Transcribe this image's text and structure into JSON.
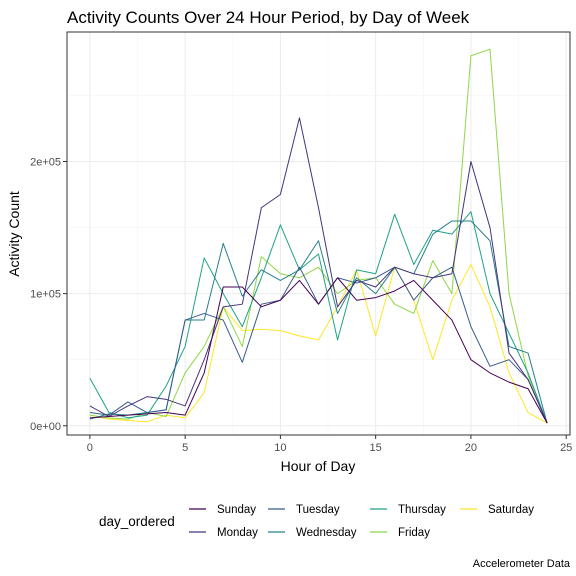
{
  "chart_data": {
    "type": "line",
    "title": "Activity Counts Over 24 Hour Period, by Day of Week",
    "xlabel": "Hour of Day",
    "ylabel": "Activity Count",
    "caption": "Accelerometer Data",
    "xlim": [
      -1.2,
      25.2
    ],
    "ylim": [
      -7000,
      298000
    ],
    "x_ticks": [
      0,
      5,
      10,
      15,
      20,
      25
    ],
    "x_tick_labels": [
      "0",
      "5",
      "10",
      "15",
      "20",
      "25"
    ],
    "y_ticks": [
      0,
      100000,
      200000
    ],
    "y_tick_labels": [
      "0e+00",
      "1e+05",
      "2e+05"
    ],
    "grid": true,
    "legend": {
      "title": "day_ordered",
      "position": "bottom"
    },
    "x": [
      0,
      1,
      2,
      3,
      4,
      5,
      6,
      7,
      8,
      9,
      10,
      11,
      12,
      13,
      14,
      15,
      16,
      17,
      18,
      19,
      20,
      21,
      22,
      23,
      24
    ],
    "series": [
      {
        "name": "Sunday",
        "color": "#440154",
        "values": [
          6000,
          7000,
          8000,
          9000,
          10000,
          8000,
          40000,
          105000,
          105000,
          90000,
          95000,
          110000,
          92000,
          112000,
          95000,
          97000,
          102000,
          110000,
          95000,
          80000,
          50000,
          40000,
          33000,
          28000,
          2000
        ]
      },
      {
        "name": "Monday",
        "color": "#46337E",
        "values": [
          15000,
          7000,
          15000,
          22000,
          20000,
          15000,
          50000,
          90000,
          92000,
          165000,
          175000,
          233000,
          165000,
          90000,
          110000,
          105000,
          120000,
          115000,
          112000,
          115000,
          200000,
          150000,
          55000,
          35000,
          2000
        ]
      },
      {
        "name": "Tuesday",
        "color": "#365C8D",
        "values": [
          10000,
          8000,
          18000,
          10000,
          12000,
          80000,
          85000,
          80000,
          48000,
          92000,
          95000,
          120000,
          92000,
          112000,
          108000,
          112000,
          120000,
          95000,
          112000,
          120000,
          75000,
          45000,
          50000,
          35000,
          2000
        ]
      },
      {
        "name": "Wednesday",
        "color": "#277F8E",
        "values": [
          5000,
          9000,
          8000,
          10000,
          12000,
          80000,
          80000,
          138000,
          98000,
          118000,
          110000,
          118000,
          140000,
          85000,
          112000,
          100000,
          120000,
          115000,
          145000,
          155000,
          155000,
          140000,
          60000,
          55000,
          2000
        ]
      },
      {
        "name": "Thursday",
        "color": "#1FA187",
        "values": [
          36000,
          10000,
          6000,
          8000,
          30000,
          60000,
          127000,
          100000,
          75000,
          112000,
          152000,
          118000,
          130000,
          65000,
          118000,
          115000,
          160000,
          122000,
          148000,
          145000,
          162000,
          100000,
          70000,
          40000,
          2000
        ]
      },
      {
        "name": "Friday",
        "color": "#8FD744",
        "values": [
          8000,
          6000,
          5000,
          10000,
          7000,
          40000,
          60000,
          90000,
          60000,
          128000,
          115000,
          112000,
          120000,
          100000,
          110000,
          112000,
          92000,
          85000,
          125000,
          100000,
          280000,
          285000,
          100000,
          38000,
          2000
        ]
      },
      {
        "name": "Saturday",
        "color": "#FDE725",
        "values": [
          8000,
          5000,
          4000,
          3000,
          8000,
          6000,
          25000,
          90000,
          72000,
          73000,
          72000,
          68000,
          65000,
          90000,
          118000,
          68000,
          120000,
          95000,
          50000,
          95000,
          122000,
          90000,
          40000,
          10000,
          2000
        ]
      }
    ]
  }
}
